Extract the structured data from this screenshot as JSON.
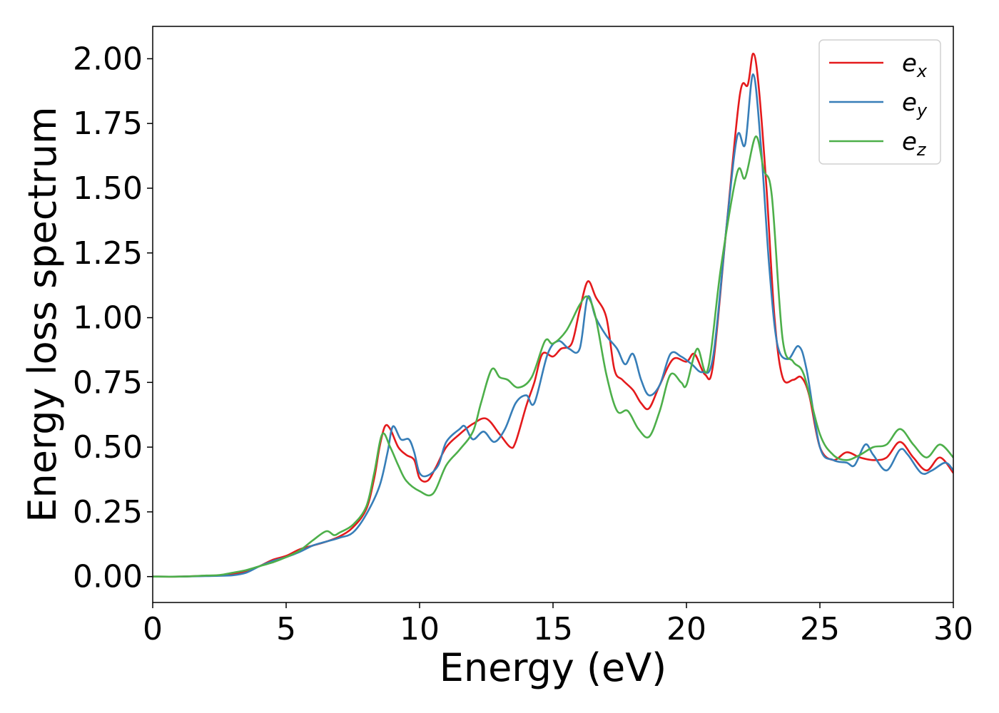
{
  "chart_data": {
    "type": "line",
    "title": "",
    "xlabel": "Energy (eV)",
    "ylabel": "Energy loss spectrum",
    "xlim": [
      0,
      30
    ],
    "ylim": [
      -0.1,
      2.125
    ],
    "xticks": [
      0,
      5,
      10,
      15,
      20,
      25,
      30
    ],
    "xtick_labels": [
      "0",
      "5",
      "10",
      "15",
      "20",
      "25",
      "30"
    ],
    "yticks": [
      0,
      0.25,
      0.5,
      0.75,
      1.0,
      1.25,
      1.5,
      1.75,
      2.0
    ],
    "ytick_labels": [
      "0.00",
      "0.25",
      "0.50",
      "0.75",
      "1.00",
      "1.25",
      "1.50",
      "1.75",
      "2.00"
    ],
    "grid": false,
    "legend": {
      "position": "top-right"
    },
    "series": [
      {
        "name": "e_x",
        "label_base": "e",
        "label_sub": "x",
        "color": "#e41a1c",
        "points": [
          [
            0,
            0
          ],
          [
            1,
            0
          ],
          [
            2,
            0.003
          ],
          [
            2.5,
            0.005
          ],
          [
            3,
            0.01
          ],
          [
            3.5,
            0.02
          ],
          [
            4,
            0.04
          ],
          [
            4.5,
            0.065
          ],
          [
            5,
            0.08
          ],
          [
            5.5,
            0.105
          ],
          [
            6,
            0.12
          ],
          [
            6.5,
            0.135
          ],
          [
            7,
            0.155
          ],
          [
            7.5,
            0.19
          ],
          [
            8,
            0.26
          ],
          [
            8.3,
            0.38
          ],
          [
            8.5,
            0.5
          ],
          [
            8.7,
            0.58
          ],
          [
            8.9,
            0.57
          ],
          [
            9.2,
            0.5
          ],
          [
            9.5,
            0.47
          ],
          [
            9.8,
            0.45
          ],
          [
            10,
            0.38
          ],
          [
            10.3,
            0.37
          ],
          [
            10.6,
            0.42
          ],
          [
            11,
            0.5
          ],
          [
            11.5,
            0.55
          ],
          [
            12,
            0.59
          ],
          [
            12.5,
            0.61
          ],
          [
            13,
            0.55
          ],
          [
            13.4,
            0.5
          ],
          [
            13.6,
            0.52
          ],
          [
            14,
            0.66
          ],
          [
            14.3,
            0.75
          ],
          [
            14.6,
            0.86
          ],
          [
            15,
            0.85
          ],
          [
            15.3,
            0.88
          ],
          [
            15.7,
            0.9
          ],
          [
            16,
            1.03
          ],
          [
            16.3,
            1.14
          ],
          [
            16.6,
            1.08
          ],
          [
            17,
            1.0
          ],
          [
            17.3,
            0.8
          ],
          [
            17.6,
            0.76
          ],
          [
            18,
            0.72
          ],
          [
            18.3,
            0.67
          ],
          [
            18.6,
            0.65
          ],
          [
            19,
            0.74
          ],
          [
            19.5,
            0.84
          ],
          [
            20,
            0.83
          ],
          [
            20.3,
            0.86
          ],
          [
            20.7,
            0.78
          ],
          [
            21,
            0.82
          ],
          [
            21.5,
            1.35
          ],
          [
            22,
            1.86
          ],
          [
            22.3,
            1.9
          ],
          [
            22.5,
            2.02
          ],
          [
            22.7,
            1.9
          ],
          [
            23,
            1.5
          ],
          [
            23.3,
            1.0
          ],
          [
            23.6,
            0.77
          ],
          [
            24,
            0.76
          ],
          [
            24.3,
            0.77
          ],
          [
            24.6,
            0.7
          ],
          [
            25,
            0.5
          ],
          [
            25.5,
            0.45
          ],
          [
            26,
            0.48
          ],
          [
            26.5,
            0.46
          ],
          [
            27,
            0.45
          ],
          [
            27.5,
            0.46
          ],
          [
            28,
            0.52
          ],
          [
            28.5,
            0.46
          ],
          [
            29,
            0.41
          ],
          [
            29.5,
            0.46
          ],
          [
            30,
            0.4
          ]
        ]
      },
      {
        "name": "e_y",
        "label_base": "e",
        "label_sub": "y",
        "color": "#377eb8",
        "points": [
          [
            0,
            0
          ],
          [
            1,
            0
          ],
          [
            2,
            0.002
          ],
          [
            2.5,
            0.003
          ],
          [
            3,
            0.005
          ],
          [
            3.5,
            0.015
          ],
          [
            4,
            0.04
          ],
          [
            4.5,
            0.06
          ],
          [
            5,
            0.075
          ],
          [
            5.5,
            0.095
          ],
          [
            6,
            0.12
          ],
          [
            6.5,
            0.135
          ],
          [
            7,
            0.15
          ],
          [
            7.5,
            0.17
          ],
          [
            8,
            0.24
          ],
          [
            8.5,
            0.35
          ],
          [
            8.8,
            0.48
          ],
          [
            9,
            0.58
          ],
          [
            9.3,
            0.53
          ],
          [
            9.6,
            0.53
          ],
          [
            9.8,
            0.48
          ],
          [
            10,
            0.4
          ],
          [
            10.3,
            0.39
          ],
          [
            10.7,
            0.43
          ],
          [
            11,
            0.52
          ],
          [
            11.5,
            0.57
          ],
          [
            11.7,
            0.58
          ],
          [
            12,
            0.53
          ],
          [
            12.4,
            0.56
          ],
          [
            12.8,
            0.52
          ],
          [
            13.2,
            0.57
          ],
          [
            13.6,
            0.67
          ],
          [
            14,
            0.7
          ],
          [
            14.3,
            0.67
          ],
          [
            14.8,
            0.86
          ],
          [
            15.2,
            0.91
          ],
          [
            15.6,
            0.88
          ],
          [
            16,
            0.88
          ],
          [
            16.3,
            1.08
          ],
          [
            16.6,
            1.0
          ],
          [
            17,
            0.93
          ],
          [
            17.4,
            0.88
          ],
          [
            17.7,
            0.82
          ],
          [
            18,
            0.86
          ],
          [
            18.3,
            0.76
          ],
          [
            18.6,
            0.7
          ],
          [
            19,
            0.74
          ],
          [
            19.4,
            0.86
          ],
          [
            19.8,
            0.85
          ],
          [
            20.2,
            0.82
          ],
          [
            20.6,
            0.79
          ],
          [
            21,
            0.85
          ],
          [
            21.5,
            1.35
          ],
          [
            21.9,
            1.7
          ],
          [
            22.2,
            1.67
          ],
          [
            22.5,
            1.94
          ],
          [
            22.8,
            1.65
          ],
          [
            23.1,
            1.2
          ],
          [
            23.4,
            0.9
          ],
          [
            23.8,
            0.84
          ],
          [
            24.2,
            0.89
          ],
          [
            24.5,
            0.8
          ],
          [
            25,
            0.5
          ],
          [
            25.5,
            0.45
          ],
          [
            26,
            0.44
          ],
          [
            26.3,
            0.43
          ],
          [
            26.7,
            0.51
          ],
          [
            27,
            0.47
          ],
          [
            27.5,
            0.41
          ],
          [
            28,
            0.49
          ],
          [
            28.3,
            0.47
          ],
          [
            28.8,
            0.4
          ],
          [
            29.2,
            0.41
          ],
          [
            29.7,
            0.44
          ],
          [
            30,
            0.41
          ]
        ]
      },
      {
        "name": "e_z",
        "label_base": "e",
        "label_sub": "z",
        "color": "#4daf4a",
        "points": [
          [
            0,
            0
          ],
          [
            1,
            0
          ],
          [
            2,
            0.004
          ],
          [
            2.5,
            0.006
          ],
          [
            3,
            0.015
          ],
          [
            3.5,
            0.025
          ],
          [
            4,
            0.04
          ],
          [
            4.5,
            0.055
          ],
          [
            5,
            0.075
          ],
          [
            5.5,
            0.1
          ],
          [
            6,
            0.14
          ],
          [
            6.5,
            0.175
          ],
          [
            6.8,
            0.16
          ],
          [
            7,
            0.17
          ],
          [
            7.5,
            0.2
          ],
          [
            8,
            0.27
          ],
          [
            8.3,
            0.4
          ],
          [
            8.6,
            0.55
          ],
          [
            8.9,
            0.5
          ],
          [
            9.2,
            0.43
          ],
          [
            9.5,
            0.37
          ],
          [
            10,
            0.33
          ],
          [
            10.5,
            0.32
          ],
          [
            11,
            0.43
          ],
          [
            11.5,
            0.49
          ],
          [
            12,
            0.56
          ],
          [
            12.3,
            0.67
          ],
          [
            12.7,
            0.8
          ],
          [
            13,
            0.77
          ],
          [
            13.3,
            0.76
          ],
          [
            13.7,
            0.73
          ],
          [
            14.2,
            0.77
          ],
          [
            14.7,
            0.91
          ],
          [
            15,
            0.9
          ],
          [
            15.5,
            0.95
          ],
          [
            16,
            1.05
          ],
          [
            16.3,
            1.08
          ],
          [
            16.6,
            1.0
          ],
          [
            17,
            0.78
          ],
          [
            17.4,
            0.64
          ],
          [
            17.8,
            0.64
          ],
          [
            18.2,
            0.57
          ],
          [
            18.6,
            0.54
          ],
          [
            19,
            0.64
          ],
          [
            19.4,
            0.78
          ],
          [
            19.8,
            0.75
          ],
          [
            20,
            0.74
          ],
          [
            20.4,
            0.88
          ],
          [
            20.8,
            0.8
          ],
          [
            21.3,
            1.2
          ],
          [
            21.9,
            1.56
          ],
          [
            22.2,
            1.54
          ],
          [
            22.6,
            1.7
          ],
          [
            22.9,
            1.57
          ],
          [
            23.2,
            1.47
          ],
          [
            23.6,
            0.92
          ],
          [
            24,
            0.83
          ],
          [
            24.4,
            0.78
          ],
          [
            25,
            0.55
          ],
          [
            25.5,
            0.47
          ],
          [
            26,
            0.45
          ],
          [
            26.5,
            0.47
          ],
          [
            27,
            0.5
          ],
          [
            27.5,
            0.51
          ],
          [
            28,
            0.57
          ],
          [
            28.5,
            0.51
          ],
          [
            29,
            0.46
          ],
          [
            29.5,
            0.51
          ],
          [
            30,
            0.46
          ]
        ]
      }
    ]
  }
}
